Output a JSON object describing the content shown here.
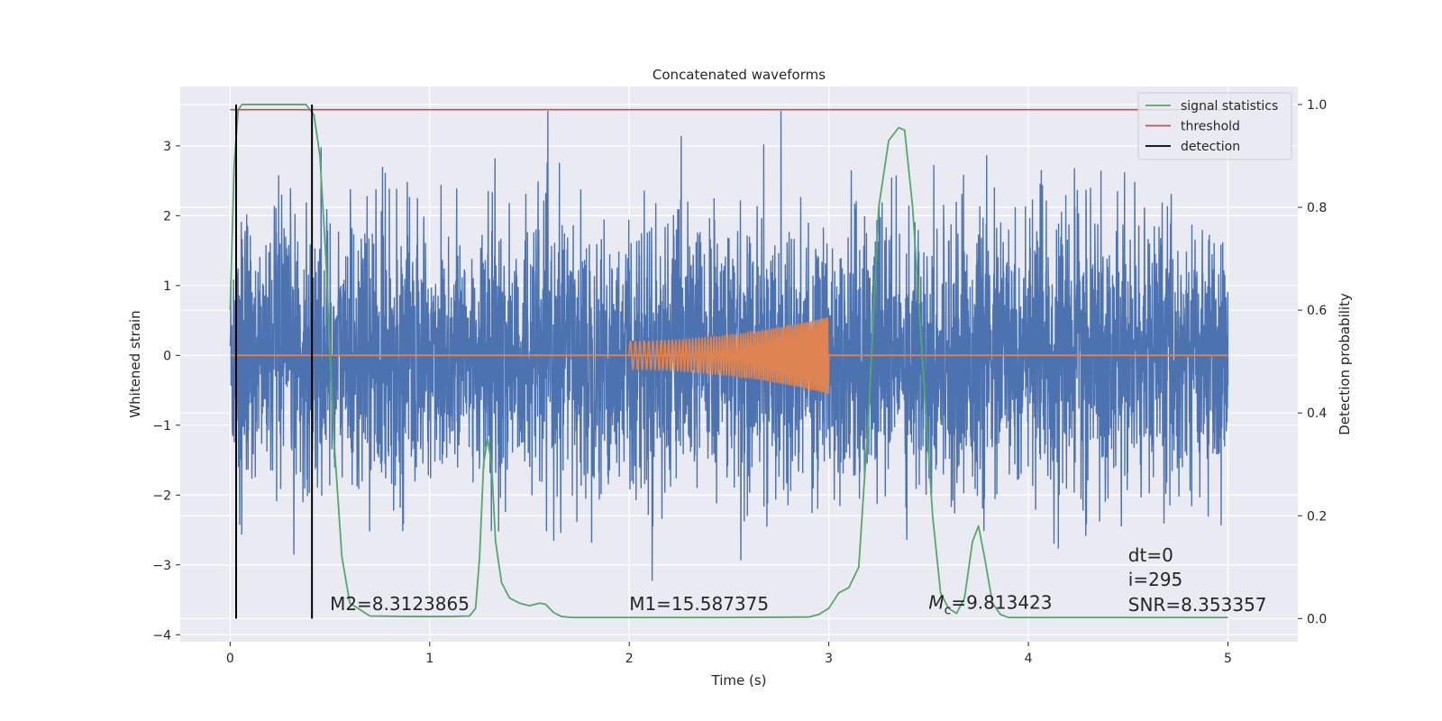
{
  "chart_data": {
    "type": "line",
    "title": "Concatenated waveforms",
    "xlabel": "Time (s)",
    "ylabel": "Whitened strain",
    "y2label": "Detection probability",
    "xlim": [
      -0.25,
      5.35
    ],
    "ylim": [
      -4.1,
      3.85
    ],
    "y2lim": [
      -0.045,
      1.035
    ],
    "xticks": [
      0,
      1,
      2,
      3,
      4,
      5
    ],
    "xtick_labels": [
      "0",
      "1",
      "2",
      "3",
      "4",
      "5"
    ],
    "yticks": [
      -4,
      -3,
      -2,
      -1,
      0,
      1,
      2,
      3
    ],
    "ytick_labels": [
      "−4",
      "−3",
      "−2",
      "−1",
      "0",
      "1",
      "2",
      "3"
    ],
    "y2ticks": [
      0.0,
      0.2,
      0.4,
      0.6,
      0.8,
      1.0
    ],
    "y2tick_labels": [
      "0.0",
      "0.2",
      "0.4",
      "0.6",
      "0.8",
      "1.0"
    ],
    "grid": true,
    "legend_position": "top-right",
    "colors": {
      "noise": "#4c72b0",
      "template": "#dd8452",
      "signal_statistics": "#55a868",
      "threshold": "#c44e52",
      "detection": "#000000",
      "background": "#eaeaf2",
      "grid": "#ffffff"
    },
    "noise_series": {
      "x_range": [
        0,
        5
      ],
      "amplitude_typical": [
        -1.5,
        1.5
      ],
      "amplitude_extremes": [
        -3.7,
        3.5
      ]
    },
    "template_series": {
      "x_range": [
        2.0,
        3.0
      ],
      "amplitude_start": 0.2,
      "amplitude_end": 0.55
    },
    "signal_statistics": {
      "x": [
        0.0,
        0.02,
        0.04,
        0.06,
        0.1,
        0.2,
        0.3,
        0.38,
        0.42,
        0.45,
        0.48,
        0.52,
        0.56,
        0.6,
        0.7,
        0.9,
        1.1,
        1.2,
        1.23,
        1.25,
        1.27,
        1.29,
        1.31,
        1.33,
        1.36,
        1.4,
        1.45,
        1.5,
        1.55,
        1.58,
        1.62,
        1.66,
        1.72,
        1.9,
        2.5,
        2.9,
        2.95,
        3.0,
        3.05,
        3.1,
        3.15,
        3.2,
        3.25,
        3.3,
        3.35,
        3.38,
        3.42,
        3.47,
        3.52,
        3.56,
        3.6,
        3.64,
        3.68,
        3.72,
        3.75,
        3.78,
        3.82,
        3.86,
        3.9,
        4.0,
        4.5,
        5.0
      ],
      "y": [
        0.6,
        0.88,
        0.99,
        1.0,
        1.0,
        1.0,
        1.0,
        1.0,
        0.98,
        0.9,
        0.7,
        0.35,
        0.12,
        0.03,
        0.005,
        0.004,
        0.004,
        0.005,
        0.02,
        0.12,
        0.3,
        0.35,
        0.3,
        0.15,
        0.07,
        0.04,
        0.03,
        0.025,
        0.03,
        0.028,
        0.012,
        0.004,
        0.002,
        0.002,
        0.002,
        0.003,
        0.008,
        0.02,
        0.05,
        0.06,
        0.1,
        0.4,
        0.8,
        0.93,
        0.955,
        0.95,
        0.8,
        0.5,
        0.2,
        0.05,
        0.02,
        0.01,
        0.04,
        0.15,
        0.18,
        0.12,
        0.03,
        0.008,
        0.002,
        0.002,
        0.002,
        0.002
      ]
    },
    "threshold": 0.99,
    "detections": [
      0.03,
      0.41
    ],
    "legend": [
      {
        "label": "signal statistics",
        "color": "#55a868"
      },
      {
        "label": "threshold",
        "color": "#c44e52"
      },
      {
        "label": "detection",
        "color": "#000000"
      }
    ],
    "annotations": [
      {
        "text": "M2=8.3123865",
        "x": 0.5,
        "y": -3.65
      },
      {
        "text": "M1=15.587375",
        "x": 2.0,
        "y": -3.65
      },
      {
        "prefix": "M",
        "subscript": "c",
        "text": "=9.813423",
        "x": 3.5,
        "y": -3.63
      },
      {
        "text": "dt=0",
        "x": 4.5,
        "y": -2.95
      },
      {
        "text": "i=295",
        "x": 4.5,
        "y": -3.3
      },
      {
        "text": "SNR=8.353357",
        "x": 4.5,
        "y": -3.66
      }
    ]
  }
}
